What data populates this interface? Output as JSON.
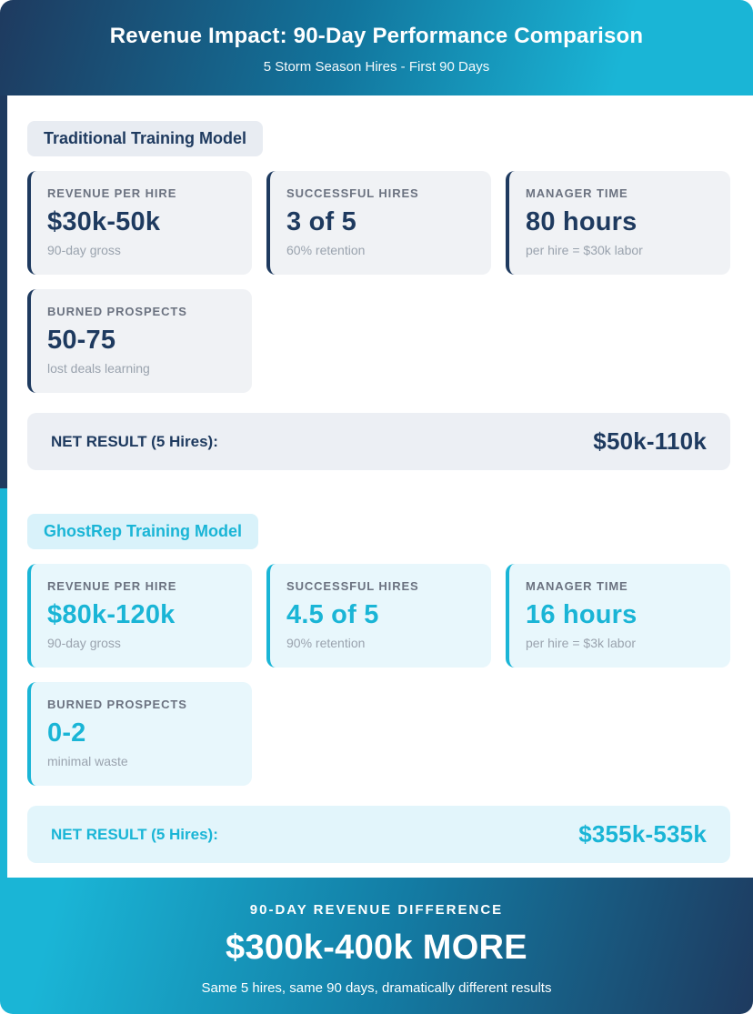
{
  "header": {
    "title": "Revenue Impact: 90-Day Performance Comparison",
    "subtitle": "5 Storm Season Hires - First 90 Days"
  },
  "sections": [
    {
      "label": "Traditional Training Model",
      "cards": [
        {
          "label": "REVENUE PER HIRE",
          "value": "$30k-50k",
          "sub": "90-day gross"
        },
        {
          "label": "SUCCESSFUL HIRES",
          "value": "3 of 5",
          "sub": "60% retention"
        },
        {
          "label": "MANAGER TIME",
          "value": "80 hours",
          "sub": "per hire = $30k labor"
        },
        {
          "label": "BURNED PROSPECTS",
          "value": "50-75",
          "sub": "lost deals learning"
        }
      ],
      "net_result": {
        "label": "NET RESULT (5 Hires):",
        "value": "$50k-110k"
      }
    },
    {
      "label": "GhostRep Training Model",
      "cards": [
        {
          "label": "REVENUE PER HIRE",
          "value": "$80k-120k",
          "sub": "90-day gross"
        },
        {
          "label": "SUCCESSFUL HIRES",
          "value": "4.5 of 5",
          "sub": "90% retention"
        },
        {
          "label": "MANAGER TIME",
          "value": "16 hours",
          "sub": "per hire = $3k labor"
        },
        {
          "label": "BURNED PROSPECTS",
          "value": "0-2",
          "sub": "minimal waste"
        }
      ],
      "net_result": {
        "label": "NET RESULT (5 Hires):",
        "value": "$355k-535k"
      }
    }
  ],
  "footer": {
    "label": "90-DAY REVENUE DIFFERENCE",
    "value": "$300k-400k MORE",
    "sub": "Same 5 hires, same 90 days, dramatically different results"
  },
  "colors": {
    "navy": "#1e3a5f",
    "teal": "#1ab5d6",
    "traditional_card_bg": "#f0f2f5",
    "ghostrep_card_bg": "#e8f7fc",
    "traditional_net_bg": "#eceff4",
    "ghostrep_net_bg": "#e2f5fb",
    "card_label_gray": "#6b7280",
    "card_sub_gray": "#9aa3ae"
  }
}
